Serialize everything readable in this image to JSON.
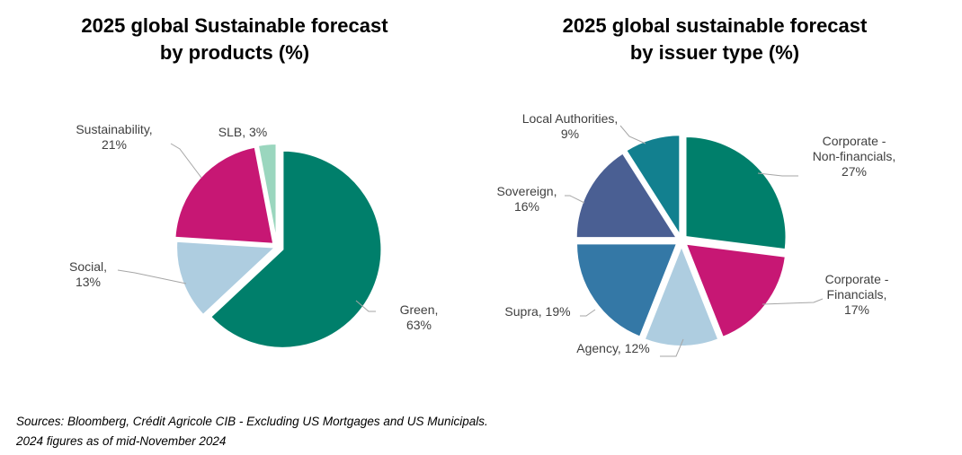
{
  "chart_data": [
    {
      "type": "pie",
      "title": [
        "2025 global Sustainable forecast",
        "by products (%)"
      ],
      "slices": [
        {
          "label": [
            "Green,",
            "63%"
          ],
          "value": 63,
          "color": "#007f6b"
        },
        {
          "label": [
            "Social,",
            "13%"
          ],
          "value": 13,
          "color": "#aecde0"
        },
        {
          "label": [
            "Sustainability,",
            "21%"
          ],
          "value": 21,
          "color": "#c71774"
        },
        {
          "label": [
            "SLB, 3%"
          ],
          "value": 3,
          "color": "#9ad6be"
        }
      ]
    },
    {
      "type": "pie",
      "title": [
        "2025 global sustainable forecast",
        "by issuer type (%)"
      ],
      "slices": [
        {
          "label": [
            "Corporate -",
            "Non-financials,",
            "27%"
          ],
          "value": 27,
          "color": "#007f6b"
        },
        {
          "label": [
            "Corporate -",
            "Financials,",
            "17%"
          ],
          "value": 17,
          "color": "#c71774"
        },
        {
          "label": [
            "Agency, 12%"
          ],
          "value": 12,
          "color": "#aecde0"
        },
        {
          "label": [
            "Supra, 19%"
          ],
          "value": 19,
          "color": "#3478a6"
        },
        {
          "label": [
            "Sovereign,",
            "16%"
          ],
          "value": 16,
          "color": "#4a5f93"
        },
        {
          "label": [
            "Local Authorities,",
            "9%"
          ],
          "value": 9,
          "color": "#12808f"
        }
      ]
    }
  ],
  "sources": [
    "Sources: Bloomberg, Crédit Agricole CIB - Excluding US Mortgages and US Municipals.",
    "2024 figures as of mid-November 2024"
  ]
}
